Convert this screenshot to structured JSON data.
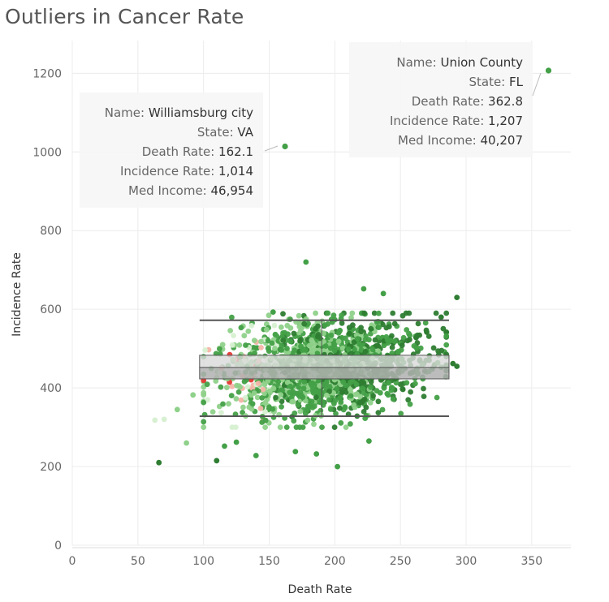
{
  "title": "Outliers in Cancer Rate",
  "chart_data": {
    "type": "scatter",
    "title": "Outliers in Cancer Rate",
    "xlabel": "Death Rate",
    "ylabel": "Incidence Rate",
    "xlim": [
      0,
      380
    ],
    "ylim": [
      0,
      1270
    ],
    "xticks": [
      0,
      50,
      100,
      150,
      200,
      250,
      300,
      350
    ],
    "yticks": [
      0,
      200,
      400,
      600,
      800,
      1000,
      1200
    ],
    "grid": true,
    "colors": {
      "dark_green": "#2e7d32",
      "mid_green": "#43a047",
      "light_green": "#8fd18a",
      "pale_green": "#d7f0d1",
      "pink": "#f4b5a8",
      "red": "#e53935",
      "box_line": "#555555",
      "box_fill": "#d9d9d9",
      "box_fill_dark": "#b0b0b0"
    },
    "box_plot": {
      "x_range": [
        97,
        287
      ],
      "median_x": 190,
      "whisker_low": 328,
      "whisker_high": 572,
      "q1": 423,
      "q3": 483,
      "median": 452
    },
    "outliers_labeled": [
      {
        "name": "Williamsburg city",
        "state": "VA",
        "death_rate": 162.1,
        "incidence_rate": 1014,
        "med_income": "46,954",
        "labels": {
          "name_key": "Name:",
          "name_val": "Williamsburg city",
          "state_key": "State:",
          "state_val": "VA",
          "death_key": "Death Rate:",
          "death_val": "162.1",
          "inc_key": "Incidence Rate:",
          "inc_val": "1,014",
          "income_key": "Med Income:",
          "income_val": "46,954"
        }
      },
      {
        "name": "Union County",
        "state": "FL",
        "death_rate": 362.8,
        "incidence_rate": 1207,
        "med_income": "40,207",
        "labels": {
          "name_key": "Name:",
          "name_val": "Union County",
          "state_key": "State:",
          "state_val": "FL",
          "death_key": "Death Rate:",
          "death_val": "362.8",
          "inc_key": "Incidence Rate:",
          "inc_val": "1,207",
          "income_key": "Med Income:",
          "income_val": "40,207"
        }
      }
    ],
    "points_outer": [
      [
        66,
        210
      ],
      [
        110,
        215
      ],
      [
        87,
        260
      ],
      [
        70,
        320
      ],
      [
        80,
        345
      ],
      [
        63,
        318
      ],
      [
        92,
        382
      ],
      [
        202,
        200
      ],
      [
        226,
        265
      ],
      [
        178,
        720
      ],
      [
        153,
        593
      ],
      [
        222,
        652
      ],
      [
        237,
        640
      ],
      [
        293,
        630
      ],
      [
        293,
        455
      ],
      [
        290,
        462
      ],
      [
        281,
        580
      ],
      [
        270,
        542
      ],
      [
        262,
        528
      ],
      [
        186,
        232
      ],
      [
        170,
        238
      ],
      [
        140,
        228
      ],
      [
        116,
        252
      ],
      [
        125,
        262
      ]
    ]
  }
}
